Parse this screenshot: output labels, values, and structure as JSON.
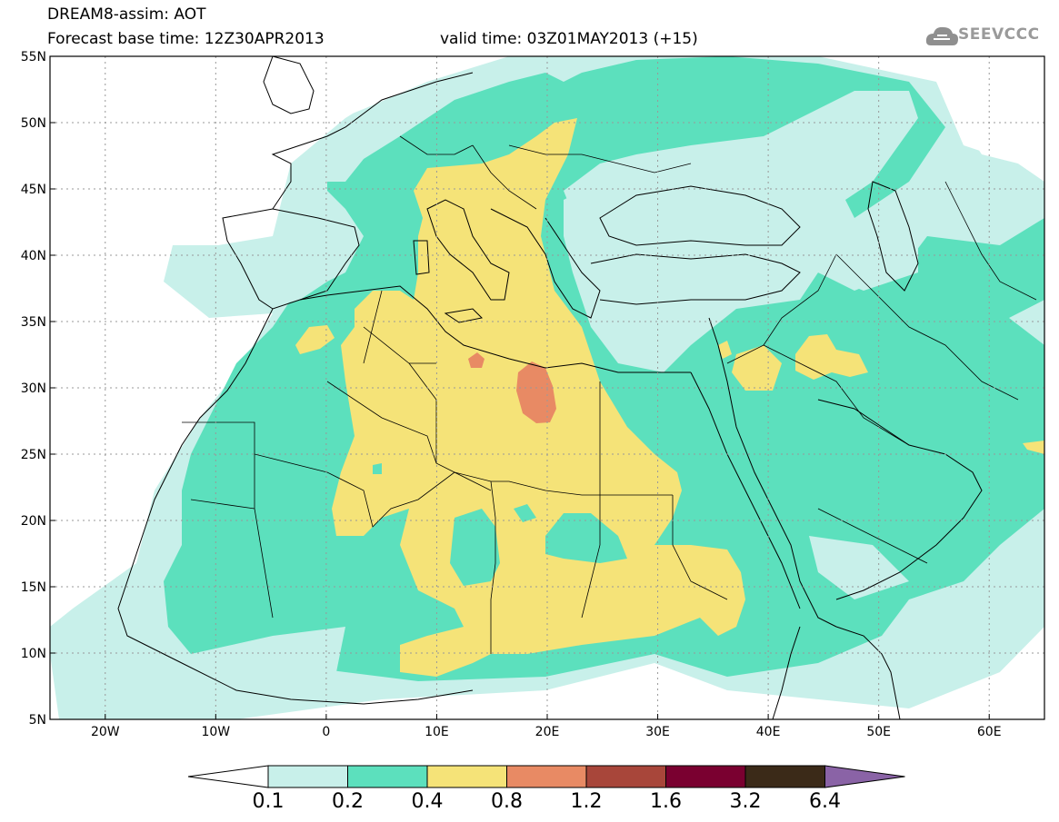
{
  "header": {
    "title_line1": "DREAM8-assim: AOT",
    "title_line2": "Forecast base time: 12Z30APR2013",
    "valid_time": "valid time: 03Z01MAY2013 (+15)",
    "logo_text": "SEEVCCC"
  },
  "map": {
    "lon_range": [
      -25,
      65
    ],
    "lat_range": [
      5,
      55
    ],
    "lon_ticks": [
      {
        "value": -20,
        "label": "20W"
      },
      {
        "value": -10,
        "label": "10W"
      },
      {
        "value": 0,
        "label": "0"
      },
      {
        "value": 10,
        "label": "10E"
      },
      {
        "value": 20,
        "label": "20E"
      },
      {
        "value": 30,
        "label": "30E"
      },
      {
        "value": 40,
        "label": "40E"
      },
      {
        "value": 50,
        "label": "50E"
      },
      {
        "value": 60,
        "label": "60E"
      }
    ],
    "lat_ticks": [
      {
        "value": 55,
        "label": "55N"
      },
      {
        "value": 50,
        "label": "50N"
      },
      {
        "value": 45,
        "label": "45N"
      },
      {
        "value": 40,
        "label": "40N"
      },
      {
        "value": 35,
        "label": "35N"
      },
      {
        "value": 30,
        "label": "30N"
      },
      {
        "value": 25,
        "label": "25N"
      },
      {
        "value": 20,
        "label": "20N"
      },
      {
        "value": 15,
        "label": "15N"
      },
      {
        "value": 10,
        "label": "10N"
      },
      {
        "value": 5,
        "label": "5N"
      }
    ],
    "grid": true
  },
  "colorbar": {
    "labels": [
      "0.1",
      "0.2",
      "0.4",
      "0.8",
      "1.2",
      "1.6",
      "3.2",
      "6.4"
    ],
    "colors": [
      "#c8f0ea",
      "#5ce0bd",
      "#f5e378",
      "#e88a64",
      "#a8463a",
      "#7a0030",
      "#3b2a18",
      "#8a63a6"
    ],
    "under_color": "#ffffff"
  },
  "colors": {
    "level_01": "#c8f0ea",
    "level_02": "#5ce0bd",
    "level_04": "#f5e378",
    "level_08": "#e88a64"
  }
}
